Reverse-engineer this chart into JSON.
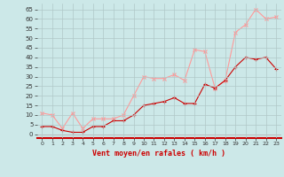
{
  "x": [
    0,
    1,
    2,
    3,
    4,
    5,
    6,
    7,
    8,
    9,
    10,
    11,
    12,
    13,
    14,
    15,
    16,
    17,
    18,
    19,
    20,
    21,
    22,
    23
  ],
  "rafales": [
    11,
    10,
    3,
    11,
    3,
    8,
    8,
    8,
    10,
    20,
    30,
    29,
    29,
    31,
    28,
    44,
    43,
    24,
    28,
    53,
    57,
    65,
    60,
    61
  ],
  "moyen": [
    4,
    4,
    2,
    1,
    1,
    4,
    4,
    7,
    7,
    10,
    15,
    16,
    17,
    19,
    16,
    16,
    26,
    24,
    28,
    35,
    40,
    39,
    40,
    34
  ],
  "bg_color": "#cce8e8",
  "grid_color": "#b0c8c8",
  "rafales_color": "#ff9999",
  "moyen_color": "#cc0000",
  "xlabel": "Vent moyen/en rafales ( km/h )",
  "xlabel_color": "#cc0000",
  "yticks": [
    0,
    5,
    10,
    15,
    20,
    25,
    30,
    35,
    40,
    45,
    50,
    55,
    60,
    65
  ],
  "ylim": [
    -2,
    68
  ],
  "xlim": [
    -0.5,
    23.5
  ]
}
